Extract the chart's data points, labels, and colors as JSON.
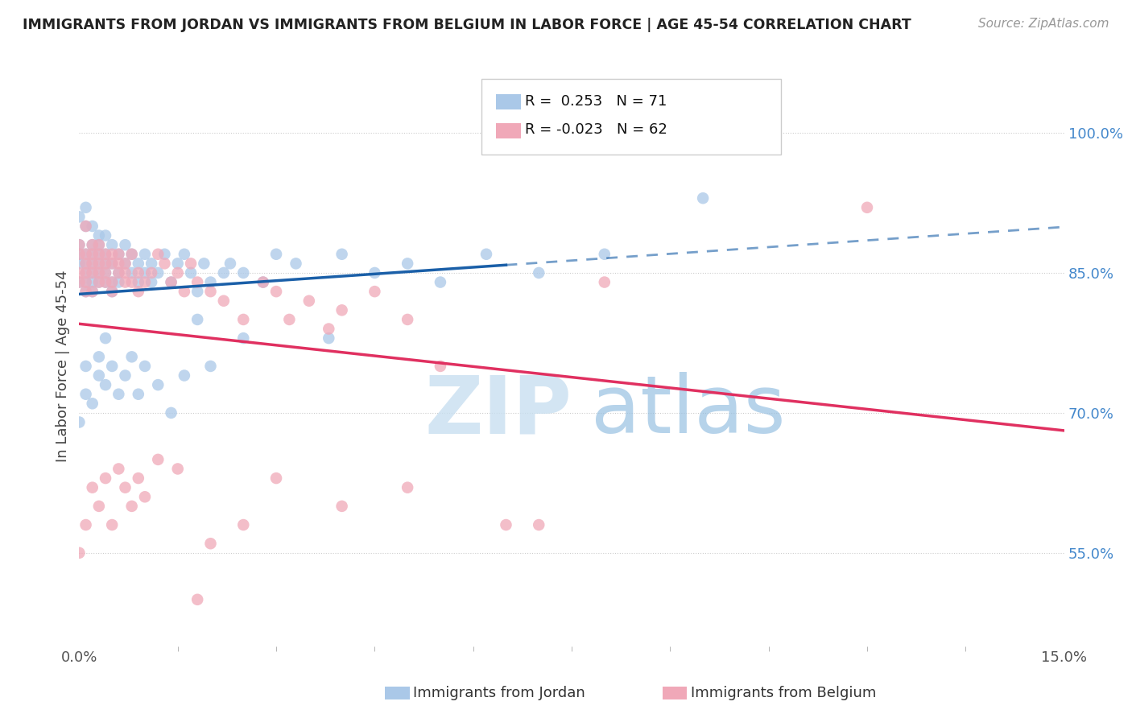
{
  "title": "IMMIGRANTS FROM JORDAN VS IMMIGRANTS FROM BELGIUM IN LABOR FORCE | AGE 45-54 CORRELATION CHART",
  "source": "Source: ZipAtlas.com",
  "ylabel": "In Labor Force | Age 45-54",
  "xlim": [
    0.0,
    0.15
  ],
  "ylim": [
    0.45,
    1.05
  ],
  "yticks": [
    0.55,
    0.7,
    0.85,
    1.0
  ],
  "ytick_labels": [
    "55.0%",
    "70.0%",
    "85.0%",
    "100.0%"
  ],
  "xticks": [
    0.0,
    0.15
  ],
  "xtick_labels": [
    "0.0%",
    "15.0%"
  ],
  "r_jordan": 0.253,
  "n_jordan": 71,
  "r_belgium": -0.023,
  "n_belgium": 62,
  "jordan_color": "#aac8e8",
  "belgium_color": "#f0a8b8",
  "jordan_line_color": "#1a5fa8",
  "belgium_line_color": "#e03060",
  "background_color": "#ffffff",
  "grid_color": "#cccccc",
  "jordan_x": [
    0.0,
    0.0,
    0.0,
    0.0,
    0.0,
    0.001,
    0.001,
    0.001,
    0.001,
    0.001,
    0.001,
    0.001,
    0.002,
    0.002,
    0.002,
    0.002,
    0.002,
    0.002,
    0.002,
    0.003,
    0.003,
    0.003,
    0.003,
    0.003,
    0.003,
    0.004,
    0.004,
    0.004,
    0.004,
    0.004,
    0.005,
    0.005,
    0.005,
    0.005,
    0.006,
    0.006,
    0.006,
    0.007,
    0.007,
    0.008,
    0.008,
    0.009,
    0.009,
    0.01,
    0.01,
    0.011,
    0.011,
    0.012,
    0.013,
    0.014,
    0.015,
    0.016,
    0.017,
    0.018,
    0.019,
    0.02,
    0.022,
    0.023,
    0.025,
    0.028,
    0.03,
    0.033,
    0.038,
    0.04,
    0.045,
    0.05,
    0.055,
    0.062,
    0.07,
    0.08,
    0.095
  ],
  "jordan_y": [
    0.86,
    0.84,
    0.88,
    0.91,
    0.87,
    0.85,
    0.87,
    0.9,
    0.84,
    0.92,
    0.83,
    0.86,
    0.85,
    0.88,
    0.86,
    0.84,
    0.87,
    0.9,
    0.83,
    0.86,
    0.88,
    0.85,
    0.84,
    0.87,
    0.89,
    0.86,
    0.84,
    0.87,
    0.89,
    0.85,
    0.88,
    0.84,
    0.86,
    0.83,
    0.87,
    0.85,
    0.84,
    0.88,
    0.86,
    0.85,
    0.87,
    0.86,
    0.84,
    0.87,
    0.85,
    0.86,
    0.84,
    0.85,
    0.87,
    0.84,
    0.86,
    0.87,
    0.85,
    0.83,
    0.86,
    0.84,
    0.85,
    0.86,
    0.85,
    0.84,
    0.87,
    0.86,
    0.78,
    0.87,
    0.85,
    0.86,
    0.84,
    0.87,
    0.85,
    0.87,
    0.93
  ],
  "belgium_x": [
    0.0,
    0.0,
    0.0,
    0.0,
    0.001,
    0.001,
    0.001,
    0.001,
    0.001,
    0.001,
    0.002,
    0.002,
    0.002,
    0.002,
    0.002,
    0.003,
    0.003,
    0.003,
    0.003,
    0.003,
    0.004,
    0.004,
    0.004,
    0.004,
    0.005,
    0.005,
    0.005,
    0.005,
    0.006,
    0.006,
    0.006,
    0.007,
    0.007,
    0.007,
    0.008,
    0.008,
    0.009,
    0.009,
    0.01,
    0.011,
    0.012,
    0.013,
    0.014,
    0.015,
    0.016,
    0.017,
    0.018,
    0.02,
    0.022,
    0.025,
    0.028,
    0.03,
    0.032,
    0.035,
    0.038,
    0.04,
    0.045,
    0.05,
    0.055,
    0.065,
    0.08,
    0.12
  ],
  "belgium_y": [
    0.84,
    0.88,
    0.85,
    0.87,
    0.86,
    0.9,
    0.84,
    0.87,
    0.83,
    0.85,
    0.87,
    0.85,
    0.83,
    0.86,
    0.88,
    0.84,
    0.86,
    0.88,
    0.85,
    0.87,
    0.86,
    0.84,
    0.87,
    0.85,
    0.86,
    0.84,
    0.87,
    0.83,
    0.86,
    0.85,
    0.87,
    0.84,
    0.86,
    0.85,
    0.87,
    0.84,
    0.85,
    0.83,
    0.84,
    0.85,
    0.87,
    0.86,
    0.84,
    0.85,
    0.83,
    0.86,
    0.84,
    0.83,
    0.82,
    0.8,
    0.84,
    0.83,
    0.8,
    0.82,
    0.79,
    0.81,
    0.83,
    0.8,
    0.75,
    0.58,
    0.84,
    0.92
  ],
  "jordan_low_x": [
    0.0,
    0.001,
    0.001,
    0.002,
    0.003,
    0.003,
    0.004,
    0.004,
    0.005,
    0.006,
    0.007,
    0.008,
    0.009,
    0.01,
    0.012,
    0.014,
    0.016,
    0.018,
    0.02,
    0.025
  ],
  "jordan_low_y": [
    0.69,
    0.72,
    0.75,
    0.71,
    0.74,
    0.76,
    0.73,
    0.78,
    0.75,
    0.72,
    0.74,
    0.76,
    0.72,
    0.75,
    0.73,
    0.7,
    0.74,
    0.8,
    0.75,
    0.78
  ],
  "belgium_low_x": [
    0.0,
    0.001,
    0.002,
    0.003,
    0.004,
    0.005,
    0.006,
    0.007,
    0.008,
    0.009,
    0.01,
    0.012,
    0.015,
    0.018,
    0.02,
    0.025,
    0.03,
    0.04,
    0.05,
    0.07
  ],
  "belgium_low_y": [
    0.55,
    0.58,
    0.62,
    0.6,
    0.63,
    0.58,
    0.64,
    0.62,
    0.6,
    0.63,
    0.61,
    0.65,
    0.64,
    0.5,
    0.56,
    0.58,
    0.63,
    0.6,
    0.62,
    0.58
  ]
}
